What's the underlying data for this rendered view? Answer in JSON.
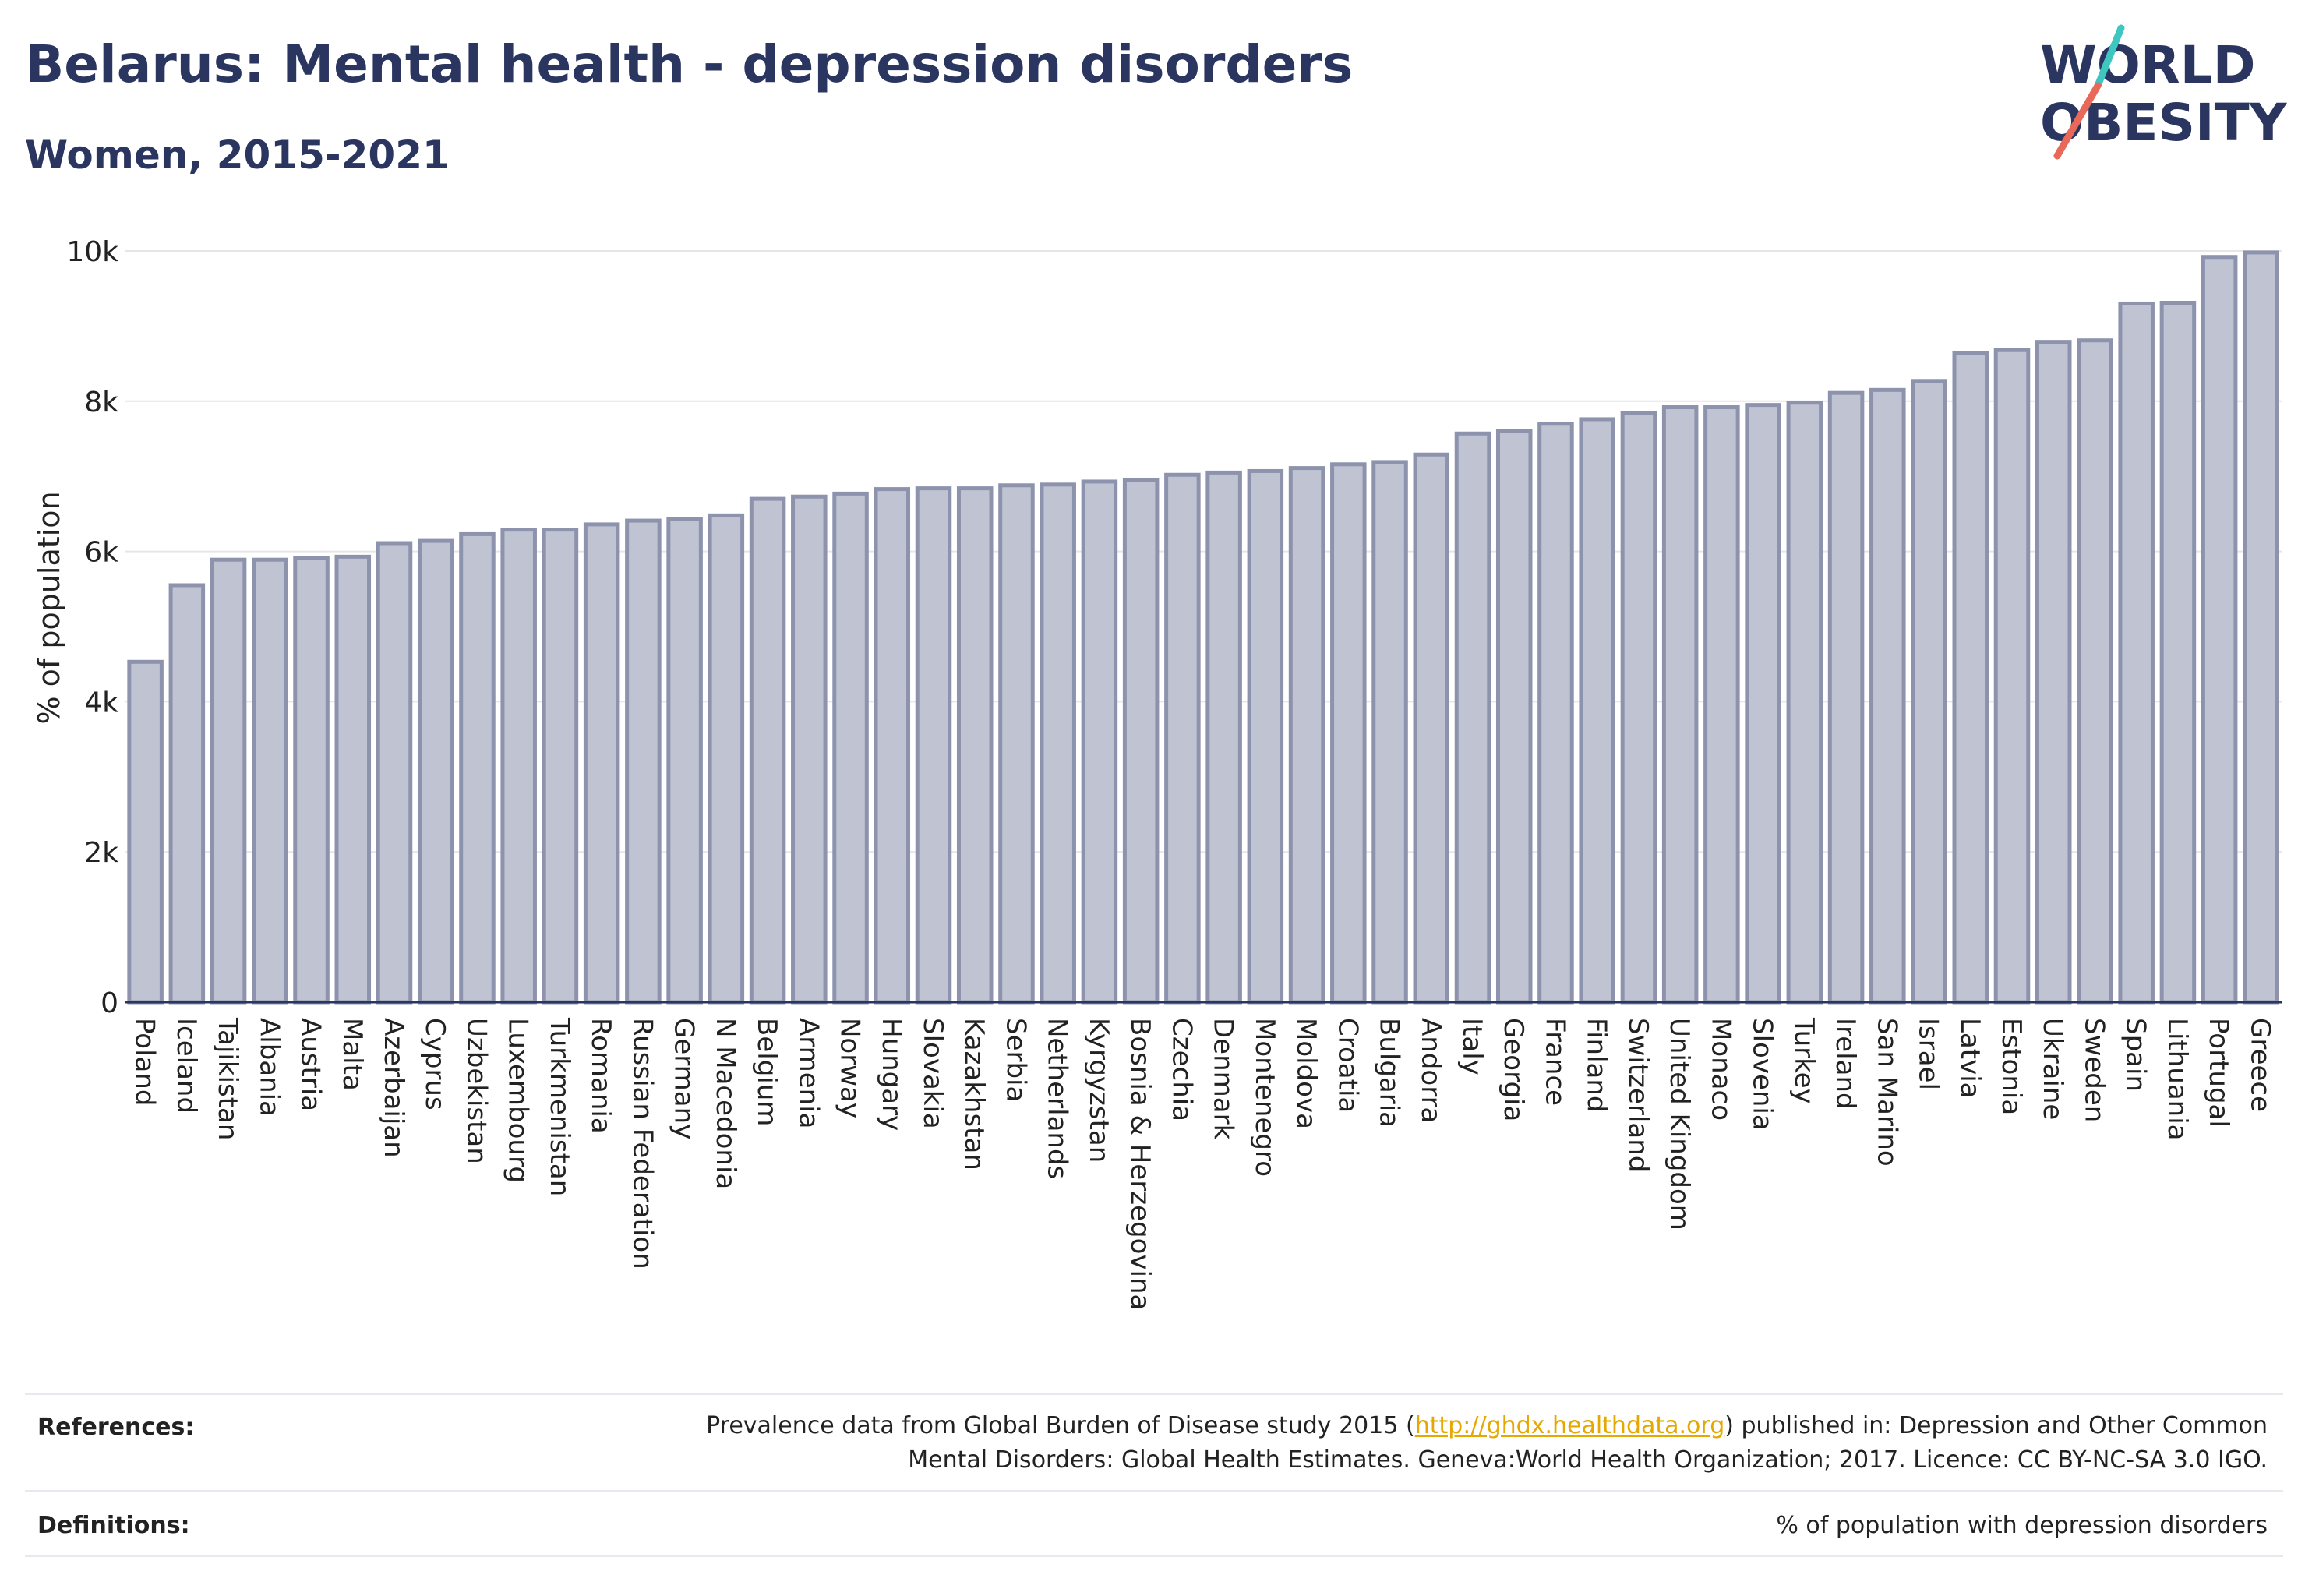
{
  "header": {
    "title": "Belarus: Mental health - depression disorders",
    "subtitle": "Women, 2015-2021"
  },
  "logo": {
    "line1": "WORLD",
    "line2": "OBESITY",
    "brand_color": "#2a3560",
    "slash_colors": [
      "#3ec6c0",
      "#e8695a"
    ]
  },
  "colors": {
    "bar_fill": "#bfc3d2",
    "bar_stroke": "#8d93ad",
    "grid": "#e6e6ea",
    "axis": "#2a3560"
  },
  "chart_data": {
    "type": "bar",
    "title": "Belarus: Mental health - depression disorders",
    "subtitle": "Women, 2015-2021",
    "xlabel": "",
    "ylabel": "% of population",
    "ylim": [
      0,
      10000
    ],
    "yticks": [
      0,
      2000,
      4000,
      6000,
      8000,
      10000
    ],
    "ytick_labels": [
      "0",
      "2k",
      "4k",
      "6k",
      "8k",
      "10k"
    ],
    "grid": true,
    "categories": [
      "Poland",
      "Iceland",
      "Tajikistan",
      "Albania",
      "Austria",
      "Malta",
      "Azerbaijan",
      "Cyprus",
      "Uzbekistan",
      "Luxembourg",
      "Turkmenistan",
      "Romania",
      "Russian Federation",
      "Germany",
      "N Macedonia",
      "Belgium",
      "Armenia",
      "Norway",
      "Hungary",
      "Slovakia",
      "Kazakhstan",
      "Serbia",
      "Netherlands",
      "Kyrgyzstan",
      "Bosnia & Herzegovina",
      "Czechia",
      "Denmark",
      "Montenegro",
      "Moldova",
      "Croatia",
      "Bulgaria",
      "Andorra",
      "Italy",
      "Georgia",
      "France",
      "Finland",
      "Switzerland",
      "United Kingdom",
      "Monaco",
      "Slovenia",
      "Turkey",
      "Ireland",
      "San Marino",
      "Israel",
      "Latvia",
      "Estonia",
      "Ukraine",
      "Sweden",
      "Spain",
      "Lithuania",
      "Portugal",
      "Greece"
    ],
    "values": [
      4530,
      5550,
      5890,
      5890,
      5910,
      5930,
      6110,
      6140,
      6230,
      6290,
      6290,
      6360,
      6410,
      6430,
      6480,
      6700,
      6730,
      6770,
      6830,
      6840,
      6840,
      6880,
      6890,
      6930,
      6950,
      7020,
      7050,
      7070,
      7110,
      7160,
      7190,
      7290,
      7570,
      7600,
      7700,
      7760,
      7840,
      7920,
      7920,
      7950,
      7980,
      8110,
      8150,
      8270,
      8640,
      8680,
      8790,
      8810,
      9300,
      9310,
      9920,
      9980
    ]
  },
  "footer": {
    "references_label": "References:",
    "references_pre": "Prevalence data from Global Burden of Disease study 2015 (",
    "references_link": "http://ghdx.healthdata.org",
    "references_post": ") published in: Depression and Other Common",
    "references_line2": "Mental Disorders: Global Health Estimates. Geneva:World Health Organization; 2017. Licence: CC BY-NC-SA 3.0 IGO.",
    "definitions_label": "Definitions:",
    "definitions_text": "% of population with depression disorders"
  }
}
